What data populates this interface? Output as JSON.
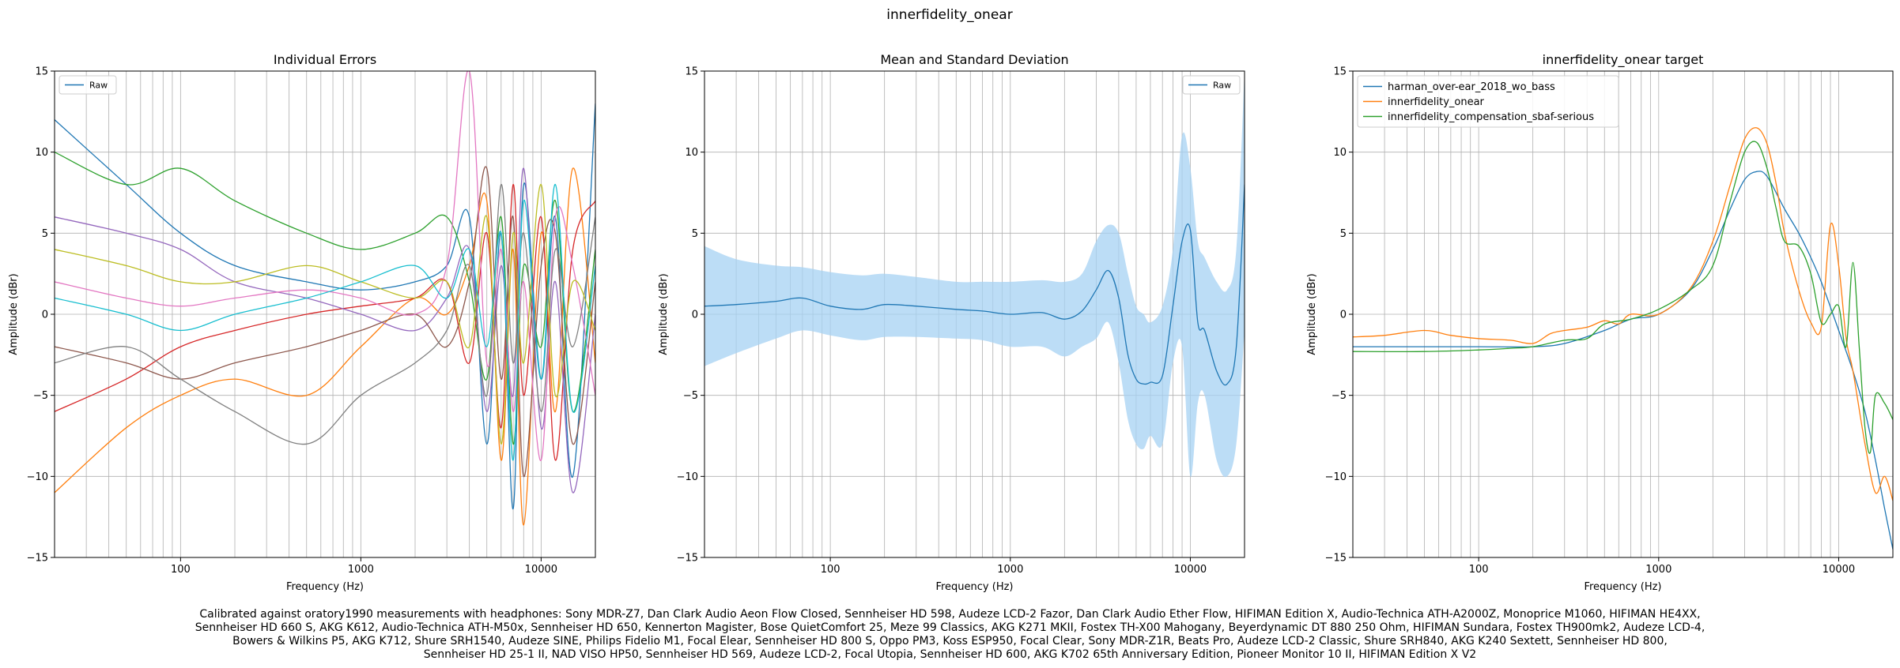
{
  "figure_title": "innerfidelity_onear",
  "caption_lines": [
    "Calibrated against oratory1990 measurements with headphones: Sony MDR-Z7, Dan Clark Audio Aeon Flow Closed, Sennheiser HD 598, Audeze LCD-2 Fazor, Dan Clark Audio Ether Flow, HIFIMAN Edition X, Audio-Technica ATH-A2000Z, Monoprice M1060, HIFIMAN HE4XX,",
    "Sennheiser HD 660 S, AKG K612, Audio-Technica ATH-M50x, Sennheiser HD 650, Kennerton Magister, Bose QuietComfort 25, Meze 99 Classics, AKG K271 MKII, Fostex TH-X00 Mahogany, Beyerdynamic DT 880 250 Ohm, HIFIMAN Sundara, Fostex TH900mk2, Audeze LCD-4,",
    "Bowers & Wilkins P5, AKG K712, Shure SRH1540, Audeze SINE, Philips Fidelio M1, Focal Elear, Sennheiser HD 800 S, Oppo PM3, Koss ESP950, Focal Clear, Sony MDR-Z1R, Beats Pro, Audeze LCD-2 Classic, Shure SRH840, AKG K240 Sextett, Sennheiser HD 800,",
    "Sennheiser HD 25-1 II, NAD VISO HP50, Sennheiser HD 569, Audeze LCD-2, Focal Utopia, Sennheiser HD 600, AKG K702 65th Anniversary Edition, Pioneer Monitor 10 II, HIFIMAN Edition X V2"
  ],
  "colors": {
    "c0": "#1f77b4",
    "c1": "#ff7f0e",
    "c2": "#2ca02c",
    "c3": "#d62728",
    "c4": "#9467bd",
    "c5": "#8c564b",
    "c6": "#e377c2",
    "c7": "#7f7f7f",
    "c8": "#bcbd22",
    "c9": "#17becf",
    "band": "#a6d2f3",
    "grid": "#b0b0b0"
  },
  "chart_data": [
    {
      "type": "line",
      "title": "Individual Errors",
      "xlabel": "Frequency (Hz)",
      "ylabel": "Amplitude (dBr)",
      "xscale": "log",
      "xlim": [
        20,
        20000
      ],
      "ylim": [
        -15,
        15
      ],
      "xticks": [
        100,
        1000,
        10000
      ],
      "xtick_labels": [
        "100",
        "1000",
        "10000"
      ],
      "yticks": [
        -15,
        -10,
        -5,
        0,
        5,
        10,
        15
      ],
      "ytick_labels": [
        "−15",
        "−10",
        "−5",
        "0",
        "5",
        "10",
        "15"
      ],
      "grid": true,
      "legend": {
        "loc": "upper left",
        "entries": [
          "Raw"
        ]
      },
      "series": [
        {
          "x": [
            20,
            50,
            100,
            200,
            500,
            1000,
            2000,
            3000,
            4000,
            5000,
            6000,
            7000,
            8000,
            10000,
            12000,
            15000,
            20000
          ],
          "y": [
            12,
            8,
            5,
            3,
            2,
            1.5,
            2,
            3,
            6,
            -8,
            5,
            -12,
            8,
            -4,
            6,
            -10,
            13
          ]
        },
        {
          "x": [
            20,
            50,
            100,
            200,
            500,
            1000,
            2000,
            3000,
            4000,
            5000,
            6000,
            7000,
            8000,
            10000,
            12000,
            15000,
            20000
          ],
          "y": [
            -11,
            -7,
            -5,
            -4,
            -5,
            -2,
            1,
            0,
            3,
            7,
            -9,
            4,
            -13,
            5,
            -6,
            9,
            -3
          ]
        },
        {
          "x": [
            20,
            50,
            100,
            200,
            500,
            1000,
            2000,
            3000,
            4000,
            5000,
            6000,
            7000,
            8000,
            10000,
            12000,
            15000,
            20000
          ],
          "y": [
            10,
            8,
            9,
            7,
            5,
            4,
            5,
            6,
            2,
            -4,
            6,
            -8,
            3,
            -2,
            7,
            -6,
            4
          ]
        },
        {
          "x": [
            20,
            50,
            100,
            200,
            500,
            1000,
            2000,
            3000,
            4000,
            5000,
            6000,
            7000,
            8000,
            10000,
            12000,
            15000,
            20000
          ],
          "y": [
            -6,
            -4,
            -2,
            -1,
            0,
            0.5,
            1,
            2,
            -3,
            5,
            -7,
            8,
            -5,
            6,
            -9,
            4,
            7
          ]
        },
        {
          "x": [
            20,
            50,
            100,
            200,
            500,
            1000,
            2000,
            3000,
            4000,
            5000,
            6000,
            7000,
            8000,
            10000,
            12000,
            15000,
            20000
          ],
          "y": [
            6,
            5,
            4,
            2,
            1,
            0,
            -1,
            1,
            4,
            -6,
            3,
            -5,
            9,
            -7,
            2,
            -11,
            0
          ]
        },
        {
          "x": [
            20,
            50,
            100,
            200,
            500,
            1000,
            2000,
            3000,
            4000,
            5000,
            6000,
            7000,
            8000,
            10000,
            12000,
            15000,
            20000
          ],
          "y": [
            -2,
            -3,
            -4,
            -3,
            -2,
            -1,
            0,
            -2,
            2,
            9,
            -4,
            6,
            -10,
            3,
            5,
            -8,
            2
          ]
        },
        {
          "x": [
            20,
            50,
            100,
            200,
            500,
            1000,
            2000,
            3000,
            4000,
            5000,
            6000,
            7000,
            8000,
            10000,
            12000,
            15000,
            20000
          ],
          "y": [
            2,
            1,
            0.5,
            1,
            1.5,
            1,
            0,
            3,
            15,
            -3,
            4,
            -6,
            2,
            -9,
            6,
            3,
            -5
          ]
        },
        {
          "x": [
            20,
            50,
            100,
            200,
            500,
            1000,
            2000,
            3000,
            4000,
            5000,
            6000,
            7000,
            8000,
            10000,
            12000,
            15000,
            20000
          ],
          "y": [
            -3,
            -2,
            -4,
            -6,
            -8,
            -5,
            -3,
            -1,
            3,
            -5,
            8,
            -3,
            5,
            -6,
            4,
            -2,
            6
          ]
        },
        {
          "x": [
            20,
            50,
            100,
            200,
            500,
            1000,
            2000,
            3000,
            4000,
            5000,
            6000,
            7000,
            8000,
            10000,
            12000,
            15000,
            20000
          ],
          "y": [
            4,
            3,
            2,
            2,
            3,
            2,
            1,
            2,
            -2,
            6,
            -8,
            5,
            -3,
            8,
            -5,
            2,
            -1
          ]
        },
        {
          "x": [
            20,
            50,
            100,
            200,
            500,
            1000,
            2000,
            3000,
            4000,
            5000,
            6000,
            7000,
            8000,
            10000,
            12000,
            15000,
            20000
          ],
          "y": [
            1,
            0,
            -1,
            0,
            1,
            2,
            3,
            1,
            4,
            -2,
            5,
            -9,
            7,
            -4,
            8,
            -6,
            3
          ]
        }
      ]
    },
    {
      "type": "line",
      "title": "Mean and Standard Deviation",
      "xlabel": "Frequency (Hz)",
      "ylabel": "Amplitude (dBr)",
      "xscale": "log",
      "xlim": [
        20,
        20000
      ],
      "ylim": [
        -15,
        15
      ],
      "xticks": [
        100,
        1000,
        10000
      ],
      "xtick_labels": [
        "100",
        "1000",
        "10000"
      ],
      "yticks": [
        -15,
        -10,
        -5,
        0,
        5,
        10,
        15
      ],
      "ytick_labels": [
        "−15",
        "−10",
        "−5",
        "0",
        "5",
        "10",
        "15"
      ],
      "grid": true,
      "legend": {
        "loc": "upper right",
        "entries": [
          "Raw"
        ]
      },
      "series": [
        {
          "name": "Raw",
          "x": [
            20,
            30,
            50,
            70,
            100,
            150,
            200,
            300,
            500,
            700,
            1000,
            1500,
            2000,
            2500,
            3000,
            3500,
            4000,
            4500,
            5000,
            5500,
            6000,
            7000,
            8000,
            9000,
            10000,
            11000,
            12000,
            14000,
            16000,
            18000,
            20000
          ],
          "y": [
            0.5,
            0.6,
            0.8,
            1.0,
            0.5,
            0.3,
            0.6,
            0.5,
            0.3,
            0.2,
            0.0,
            0.1,
            -0.3,
            0.2,
            1.5,
            2.7,
            1.0,
            -2.5,
            -4.0,
            -4.3,
            -4.2,
            -3.8,
            0.5,
            4.5,
            5.2,
            -0.5,
            -1.0,
            -3.5,
            -4.3,
            -2.0,
            8.0
          ],
          "std_upper": [
            4.2,
            3.4,
            3.0,
            2.9,
            2.6,
            2.4,
            2.5,
            2.3,
            2.0,
            2.0,
            2.0,
            2.1,
            2.0,
            2.5,
            4.5,
            5.5,
            5.0,
            2.5,
            0.5,
            0.0,
            -0.5,
            0.5,
            4.0,
            11.0,
            9.0,
            4.5,
            3.5,
            2.0,
            1.5,
            4.0,
            15.0
          ],
          "std_lower": [
            -3.2,
            -2.4,
            -1.5,
            -1.0,
            -1.3,
            -1.6,
            -1.4,
            -1.4,
            -1.5,
            -1.6,
            -2.0,
            -2.0,
            -2.6,
            -2.0,
            -1.5,
            -0.5,
            -3.0,
            -6.5,
            -8.0,
            -8.3,
            -7.5,
            -8.0,
            -3.0,
            -2.0,
            -10.0,
            -5.5,
            -5.0,
            -9.0,
            -10.0,
            -8.0,
            -1.0
          ]
        }
      ]
    },
    {
      "type": "line",
      "title": "innerfidelity_onear target",
      "xlabel": "Frequency (Hz)",
      "ylabel": "Amplitude (dBr)",
      "xscale": "log",
      "xlim": [
        20,
        20000
      ],
      "ylim": [
        -15,
        15
      ],
      "xticks": [
        100,
        1000,
        10000
      ],
      "xtick_labels": [
        "100",
        "1000",
        "10000"
      ],
      "yticks": [
        -15,
        -10,
        -5,
        0,
        5,
        10,
        15
      ],
      "ytick_labels": [
        "−15",
        "−10",
        "−5",
        "0",
        "5",
        "10",
        "15"
      ],
      "grid": true,
      "legend": {
        "loc": "upper left",
        "entries": [
          "harman_over-ear_2018_wo_bass",
          "innerfidelity_onear",
          "innerfidelity_compensation_sbaf-serious"
        ]
      },
      "series": [
        {
          "name": "harman_over-ear_2018_wo_bass",
          "x": [
            20,
            50,
            100,
            200,
            300,
            500,
            700,
            1000,
            1500,
            2000,
            2500,
            3000,
            3500,
            4000,
            5000,
            6000,
            7000,
            8000,
            10000,
            12000,
            14000,
            16000,
            18000,
            20000
          ],
          "y": [
            -2.0,
            -2.0,
            -2.0,
            -2.0,
            -1.8,
            -1.0,
            -0.3,
            0.0,
            1.5,
            4.0,
            6.5,
            8.3,
            8.8,
            8.5,
            6.5,
            5.0,
            3.5,
            2.0,
            -1.0,
            -3.5,
            -6.0,
            -9.0,
            -12.0,
            -14.5
          ]
        },
        {
          "name": "innerfidelity_onear",
          "x": [
            20,
            30,
            50,
            70,
            100,
            150,
            200,
            250,
            300,
            400,
            500,
            600,
            700,
            1000,
            1500,
            2000,
            2500,
            3000,
            3500,
            4000,
            4500,
            5000,
            6000,
            7000,
            8000,
            9000,
            10000,
            11000,
            12000,
            14000,
            16000,
            18000,
            20000
          ],
          "y": [
            -1.4,
            -1.3,
            -1.0,
            -1.3,
            -1.5,
            -1.6,
            -1.8,
            -1.2,
            -1.0,
            -0.8,
            -0.4,
            -0.6,
            0.0,
            0.0,
            1.6,
            4.5,
            8.0,
            10.8,
            11.5,
            10.5,
            8.0,
            5.0,
            1.5,
            -0.5,
            -0.8,
            5.5,
            3.0,
            -1.5,
            -3.5,
            -8.0,
            -11.0,
            -10.0,
            -11.5
          ]
        },
        {
          "name": "innerfidelity_compensation_sbaf-serious",
          "x": [
            20,
            50,
            100,
            150,
            200,
            300,
            400,
            500,
            700,
            1000,
            1500,
            2000,
            2500,
            3000,
            3500,
            4000,
            4500,
            5000,
            6000,
            7000,
            8000,
            9000,
            10000,
            11000,
            12000,
            13000,
            14000,
            15000,
            16000,
            18000,
            20000
          ],
          "y": [
            -2.3,
            -2.3,
            -2.2,
            -2.1,
            -2.0,
            -1.6,
            -1.5,
            -0.6,
            -0.3,
            0.3,
            1.5,
            3.0,
            7.0,
            10.0,
            10.6,
            9.0,
            6.5,
            4.5,
            4.2,
            2.5,
            -0.5,
            0.0,
            0.5,
            -2.0,
            3.2,
            -2.0,
            -7.0,
            -8.5,
            -5.0,
            -5.5,
            -6.5
          ]
        }
      ]
    }
  ]
}
